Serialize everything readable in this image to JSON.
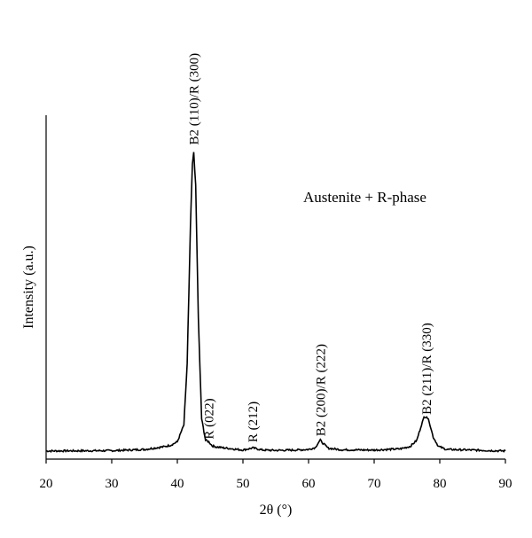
{
  "chart_data": {
    "type": "line",
    "xlabel": "2θ (°)",
    "ylabel": "Intensity (a.u.)",
    "xlim": [
      20,
      90
    ],
    "ylim": [
      0,
      100
    ],
    "xticks": [
      20,
      30,
      40,
      50,
      60,
      70,
      80,
      90
    ],
    "grid": false,
    "legend": "none",
    "annotation": "Austenite + R-phase",
    "baseline": 1.5,
    "peaks": [
      {
        "label": "B2 (110)/R (300)",
        "x": 42.5,
        "height": 99
      },
      {
        "label": "R (022)",
        "x": 44.8,
        "height": 3
      },
      {
        "label": "R (212)",
        "x": 51.5,
        "height": 2
      },
      {
        "label": "B2 (200)/R (222)",
        "x": 61.8,
        "height": 4
      },
      {
        "label": "B2 (211)/R (330)",
        "x": 78.0,
        "height": 11
      }
    ],
    "series": [
      {
        "x": [
          20,
          30,
          35,
          37,
          38,
          39,
          40,
          41,
          41.5,
          42,
          42.3,
          42.5,
          42.8,
          43.2,
          43.7,
          44.3,
          44.8,
          45.3,
          46,
          48,
          50,
          51.5,
          53,
          55,
          58,
          60,
          61,
          61.5,
          61.8,
          62.2,
          63,
          65,
          70,
          74,
          75.5,
          76.5,
          77.2,
          77.6,
          78,
          78.4,
          79,
          79.8,
          81,
          85,
          88,
          90
        ],
        "y": [
          1.5,
          1.6,
          2.0,
          2.6,
          2.9,
          3.4,
          4.5,
          10,
          30,
          75,
          95,
          99,
          88,
          45,
          12,
          5,
          4.5,
          3.2,
          2.8,
          2.3,
          1.8,
          2.5,
          1.8,
          1.7,
          1.8,
          2.0,
          2.6,
          4.2,
          5.0,
          4.0,
          2.4,
          1.9,
          1.8,
          2.2,
          3.0,
          5.0,
          10,
          12.5,
          12.8,
          11,
          6,
          3,
          2.0,
          1.8,
          1.6,
          1.5
        ]
      }
    ]
  }
}
